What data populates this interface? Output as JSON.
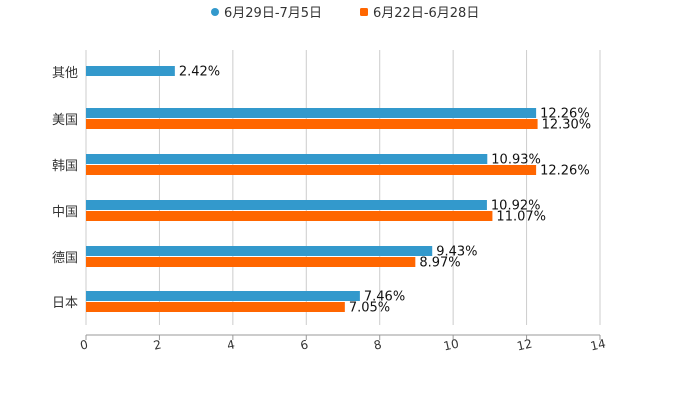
{
  "chart_data": {
    "type": "bar",
    "orientation": "horizontal",
    "categories": [
      "其他",
      "美国",
      "韩国",
      "中国",
      "德国",
      "日本"
    ],
    "series": [
      {
        "name": "6月29日-7月5日",
        "color": "#3399cc",
        "values": [
          2.42,
          12.26,
          10.93,
          10.92,
          9.43,
          7.46
        ],
        "labels": [
          "2.42%",
          "12.26%",
          "10.93%",
          "10.92%",
          "9.43%",
          "7.46%"
        ]
      },
      {
        "name": "6月22日-6月28日",
        "color": "#ff6600",
        "values": [
          null,
          12.3,
          12.26,
          11.07,
          8.97,
          7.05
        ],
        "labels": [
          null,
          "12.30%",
          "12.26%",
          "11.07%",
          "8.97%",
          "7.05%"
        ]
      }
    ],
    "xlim": [
      0,
      14
    ],
    "xticks": [
      "0",
      "2",
      "4",
      "6",
      "8",
      "10",
      "12",
      "14"
    ],
    "grid": true,
    "legend": "top-center",
    "title": "",
    "xlabel": "",
    "ylabel": ""
  }
}
